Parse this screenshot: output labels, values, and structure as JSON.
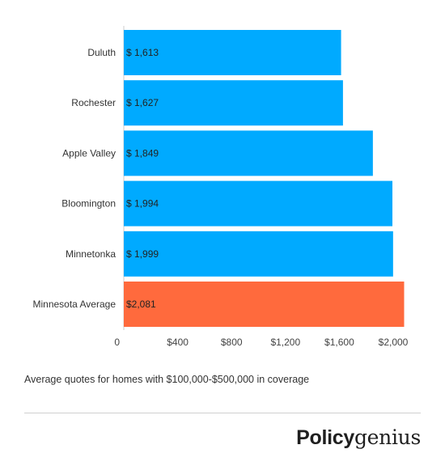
{
  "chart_data": {
    "type": "bar",
    "orientation": "horizontal",
    "categories": [
      "Duluth",
      "Rochester",
      "Apple Valley",
      "Bloomington",
      "Minnetonka",
      "Minnesota Average"
    ],
    "values": [
      1613,
      1627,
      1849,
      1994,
      1999,
      2081
    ],
    "data_labels": [
      "$ 1,613",
      "$ 1,627",
      "$ 1,849",
      "$ 1,994",
      "$ 1,999",
      "$2,081"
    ],
    "bar_colors": [
      "#00aaff",
      "#00aaff",
      "#00aaff",
      "#00aaff",
      "#00aaff",
      "#ff6a3d"
    ],
    "xlim": [
      0,
      2000
    ],
    "xticks": [
      0,
      400,
      800,
      1200,
      1600,
      2000
    ],
    "xtick_labels": [
      "0",
      "$400",
      "$800",
      "$1,200",
      "$1,600",
      "$2,000"
    ],
    "grid": false,
    "legend": "none"
  },
  "caption": "Average quotes for homes with $100,000-$500,000 in coverage",
  "brand": {
    "part1": "Policy",
    "part2": "genius"
  }
}
